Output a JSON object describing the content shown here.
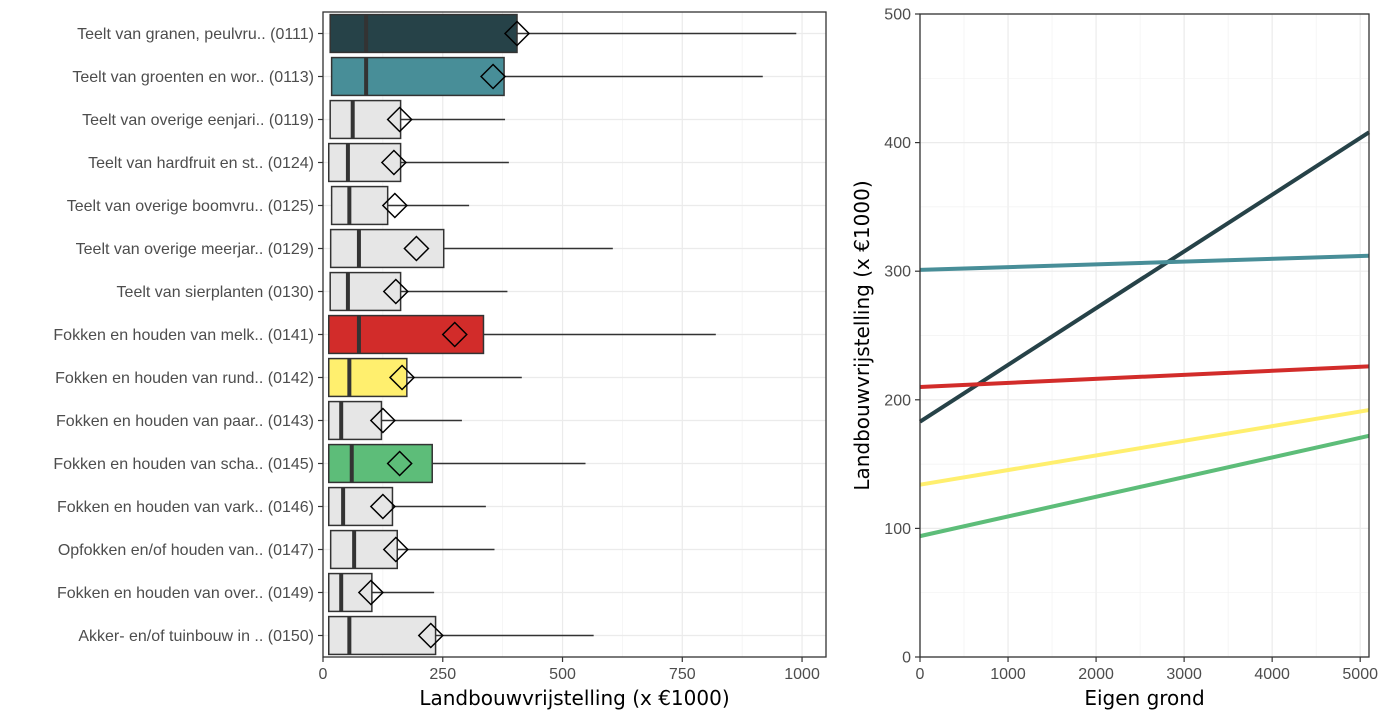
{
  "chart_data": [
    {
      "type": "boxplot",
      "orientation": "horizontal",
      "xlabel": "Landbouwvrijstelling (x €1000)",
      "xlim": [
        0,
        1050
      ],
      "xticks": [
        "0",
        "250",
        "500",
        "750",
        "1000"
      ],
      "xtick_values": [
        0,
        250,
        500,
        750,
        1000
      ],
      "grid": true,
      "categories": [
        "Teelt van granen, peulvru.. (0111)",
        "Teelt van groenten en wor.. (0113)",
        "Teelt van overige eenjari.. (0119)",
        "Teelt van hardfruit en st.. (0124)",
        "Teelt van overige boomvru.. (0125)",
        "Teelt van overige meerjar.. (0129)",
        "Teelt van sierplanten (0130)",
        "Fokken en houden van melk.. (0141)",
        "Fokken en houden van rund.. (0142)",
        "Fokken en houden van paar.. (0143)",
        "Fokken en houden van scha.. (0145)",
        "Fokken en houden van vark.. (0146)",
        "Opfokken en/of houden van.. (0147)",
        "Fokken en houden van over.. (0149)",
        "Akker- en/of tuinbouw in .. (0150)"
      ],
      "boxes": [
        {
          "q1": 15,
          "median": 90,
          "q3": 405,
          "max": 988,
          "mean": 405,
          "color": "#264248"
        },
        {
          "q1": 18,
          "median": 90,
          "q3": 378,
          "max": 918,
          "mean": 355,
          "color": "#488e98"
        },
        {
          "q1": 15,
          "median": 62,
          "q3": 162,
          "max": 380,
          "mean": 160,
          "color": "#e6e6e6"
        },
        {
          "q1": 12,
          "median": 52,
          "q3": 162,
          "max": 388,
          "mean": 148,
          "color": "#e6e6e6"
        },
        {
          "q1": 18,
          "median": 55,
          "q3": 135,
          "max": 305,
          "mean": 150,
          "color": "#e6e6e6"
        },
        {
          "q1": 16,
          "median": 75,
          "q3": 252,
          "max": 605,
          "mean": 195,
          "color": "#e6e6e6"
        },
        {
          "q1": 15,
          "median": 52,
          "q3": 162,
          "max": 385,
          "mean": 152,
          "color": "#e6e6e6"
        },
        {
          "q1": 12,
          "median": 75,
          "q3": 335,
          "max": 820,
          "mean": 275,
          "color": "#d22c2a"
        },
        {
          "q1": 12,
          "median": 55,
          "q3": 175,
          "max": 415,
          "mean": 165,
          "color": "#ffef6e"
        },
        {
          "q1": 12,
          "median": 38,
          "q3": 122,
          "max": 290,
          "mean": 125,
          "color": "#e6e6e6"
        },
        {
          "q1": 12,
          "median": 60,
          "q3": 228,
          "max": 548,
          "mean": 160,
          "color": "#5dbd79"
        },
        {
          "q1": 12,
          "median": 42,
          "q3": 145,
          "max": 340,
          "mean": 125,
          "color": "#e6e6e6"
        },
        {
          "q1": 16,
          "median": 65,
          "q3": 155,
          "max": 358,
          "mean": 152,
          "color": "#e6e6e6"
        },
        {
          "q1": 12,
          "median": 38,
          "q3": 102,
          "max": 232,
          "mean": 100,
          "color": "#e6e6e6"
        },
        {
          "q1": 12,
          "median": 55,
          "q3": 235,
          "max": 565,
          "mean": 225,
          "color": "#e6e6e6"
        }
      ]
    },
    {
      "type": "line",
      "xlabel": "Eigen grond",
      "ylabel": "Landbouwvrijstelling (x €1000)",
      "xlim": [
        0,
        5100
      ],
      "ylim": [
        0,
        500
      ],
      "xticks": [
        "0",
        "1000",
        "2000",
        "3000",
        "4000",
        "5000"
      ],
      "xtick_values": [
        0,
        1000,
        2000,
        3000,
        4000,
        5000
      ],
      "yticks": [
        "0",
        "100",
        "200",
        "300",
        "400",
        "500"
      ],
      "ytick_values": [
        0,
        100,
        200,
        300,
        400,
        500
      ],
      "grid": true,
      "series": [
        {
          "color": "#264248",
          "x": [
            0,
            5100
          ],
          "y": [
            183,
            408
          ]
        },
        {
          "color": "#488e98",
          "x": [
            0,
            5100
          ],
          "y": [
            301,
            312
          ]
        },
        {
          "color": "#d22c2a",
          "x": [
            0,
            5100
          ],
          "y": [
            210,
            226
          ]
        },
        {
          "color": "#ffef6e",
          "x": [
            0,
            5100
          ],
          "y": [
            134,
            192
          ]
        },
        {
          "color": "#5dbd79",
          "x": [
            0,
            5100
          ],
          "y": [
            94,
            172
          ]
        }
      ]
    }
  ]
}
